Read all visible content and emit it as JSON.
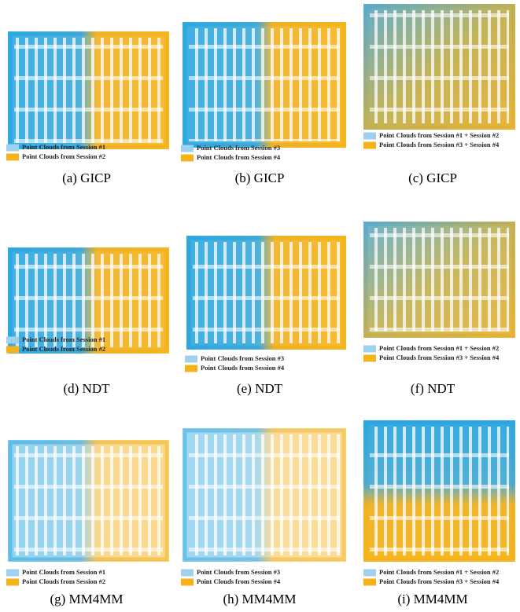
{
  "panels": [
    {
      "caption": "(a) GICP",
      "legend": [
        "Point Clouds from Session #1",
        "Point Clouds from Session #2"
      ]
    },
    {
      "caption": "(b) GICP",
      "legend": [
        "Point Clouds from Session #3",
        "Point Clouds from Session #4"
      ]
    },
    {
      "caption": "(c) GICP",
      "legend": [
        "Point Clouds from Session #1 + Session #2",
        "Point Clouds from Session #3 + Session #4"
      ]
    },
    {
      "caption": "(d) NDT",
      "legend": [
        "Point Clouds from Session #1",
        "Point Clouds from Session #2"
      ]
    },
    {
      "caption": "(e) NDT",
      "legend": [
        "Point Clouds from Session #3",
        "Point Clouds from Session #4"
      ]
    },
    {
      "caption": "(f) NDT",
      "legend": [
        "Point Clouds from Session #1 + Session #2",
        "Point Clouds from Session #3 + Session #4"
      ]
    },
    {
      "caption": "(g) MM4MM",
      "legend": [
        "Point Clouds from Session #1",
        "Point Clouds from Session #2"
      ]
    },
    {
      "caption": "(h) MM4MM",
      "legend": [
        "Point Clouds from Session #3",
        "Point Clouds from Session #4"
      ]
    },
    {
      "caption": "(i) MM4MM",
      "legend": [
        "Point Clouds from Session #1 + Session #2",
        "Point Clouds from Session #3 + Session #4"
      ]
    }
  ]
}
